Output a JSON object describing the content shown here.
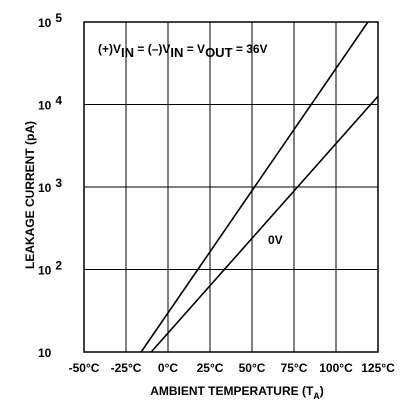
{
  "chart_data": {
    "type": "line",
    "xlabel_main": "AMBIENT TEMPERATURE (T",
    "xlabel_sub": "A",
    "xlabel_close": ")",
    "ylabel": "LEAKAGE CURRENT (pA)",
    "xlim": [
      -50,
      125
    ],
    "ylim": [
      10,
      100000
    ],
    "y_scale": "log",
    "grid": true,
    "x_ticks": [
      {
        "value": -50,
        "label": "-50°C"
      },
      {
        "value": -25,
        "label": "-25°C"
      },
      {
        "value": 0,
        "label": "0°C"
      },
      {
        "value": 25,
        "label": "25°C"
      },
      {
        "value": 50,
        "label": "50°C"
      },
      {
        "value": 75,
        "label": "75°C"
      },
      {
        "value": 100,
        "label": "100°C"
      },
      {
        "value": 125,
        "label": "125°C"
      }
    ],
    "y_ticks": [
      {
        "value": 10,
        "base": "10",
        "exp": ""
      },
      {
        "value": 100,
        "base": "10",
        "exp": "2"
      },
      {
        "value": 1000,
        "base": "10",
        "exp": "3"
      },
      {
        "value": 10000,
        "base": "10",
        "exp": "4"
      },
      {
        "value": 100000,
        "base": "10",
        "exp": "5"
      }
    ],
    "series": [
      {
        "label_parts": [
          "(+)V",
          "IN",
          " = (–)V",
          "IN",
          " = V",
          "OUT",
          " = 36V"
        ],
        "x": [
          -16,
          119
        ],
        "y": [
          10,
          100000
        ],
        "color": "#000000"
      },
      {
        "label_parts": [
          "0V"
        ],
        "x": [
          -10,
          125
        ],
        "y": [
          10,
          12600
        ],
        "color": "#000000"
      }
    ]
  }
}
